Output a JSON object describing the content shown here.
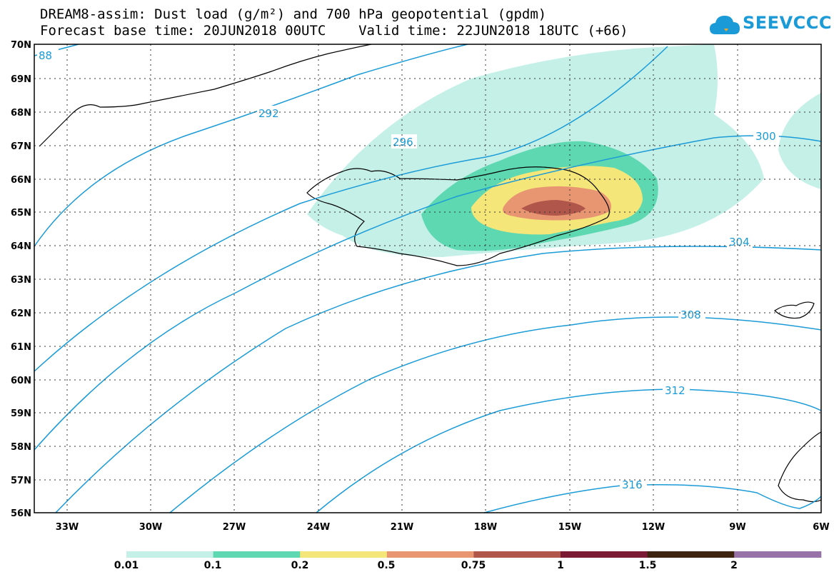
{
  "title": {
    "line1": "DREAM8-assim: Dust load (g/m²) and 700 hPa geopotential (gpdm)",
    "line2": "Forecast base time: 20JUN2018 00UTC    Valid time: 22JUN2018 18UTC (+66)"
  },
  "logo": {
    "text": "SEEVCCC",
    "icon": "cloud-icon"
  },
  "axes": {
    "lat_labels": [
      "70N",
      "69N",
      "68N",
      "67N",
      "66N",
      "65N",
      "64N",
      "63N",
      "62N",
      "61N",
      "60N",
      "59N",
      "58N",
      "57N",
      "56N"
    ],
    "lon_labels": [
      "33W",
      "30W",
      "27W",
      "24W",
      "21W",
      "18W",
      "15W",
      "12W",
      "9W",
      "6W"
    ],
    "lat_range": [
      56,
      70
    ],
    "lon_range": [
      -34.3,
      -6
    ]
  },
  "contours": {
    "color": "#1a9bd7",
    "labels": [
      "88",
      "292",
      "296",
      "300",
      "304",
      "308",
      "312",
      "316"
    ]
  },
  "colorbar": {
    "colors": [
      "#c4f0e8",
      "#5ed8b0",
      "#f5e67a",
      "#e89572",
      "#b1564a",
      "#7a1a33",
      "#3d2410",
      "#9773a8"
    ],
    "tick_labels": [
      "0.01",
      "0.1",
      "0.2",
      "0.5",
      "0.75",
      "1",
      "1.5",
      "2"
    ]
  },
  "colors": {
    "contour": "#1a9bd7",
    "brand": "#1a9bd7"
  }
}
